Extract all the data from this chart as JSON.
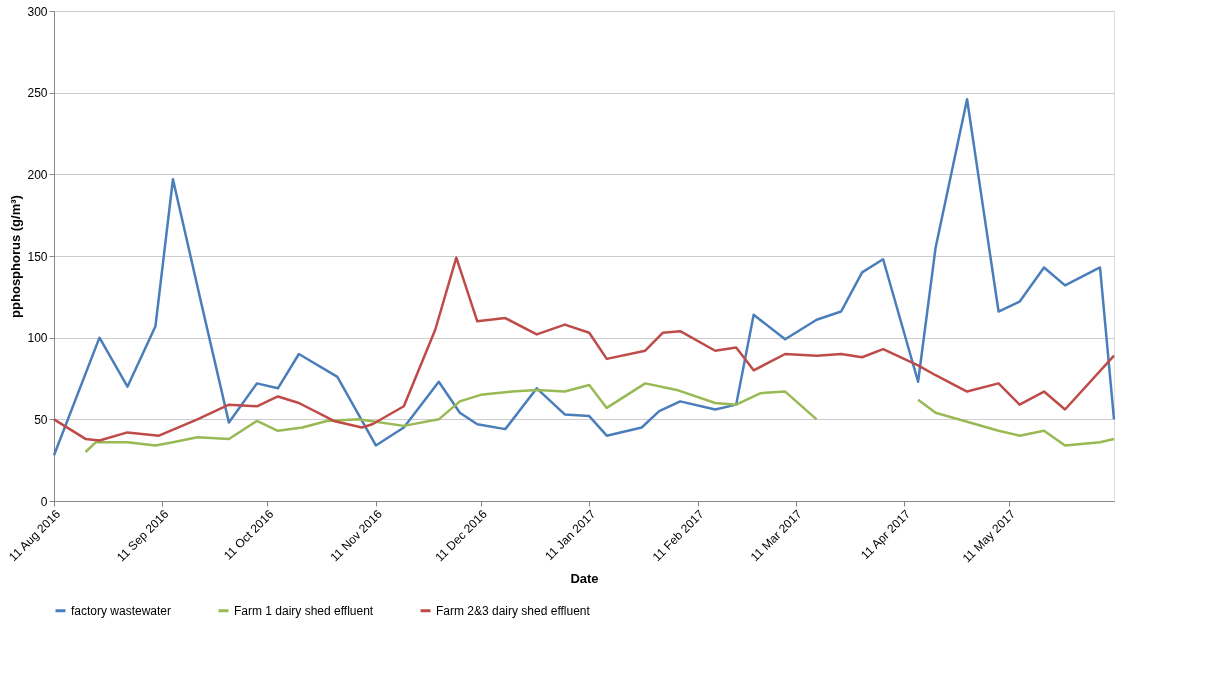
{
  "chart_data": {
    "type": "line",
    "xlabel": "Date",
    "ylabel": "pphosphorus (g/m³)",
    "xlim": [
      "2016-08-11",
      "2017-06-10"
    ],
    "xticks": [
      {
        "value": "2016-08-11",
        "label": "11 Aug 2016"
      },
      {
        "value": "2016-09-11",
        "label": "11 Sep 2016"
      },
      {
        "value": "2016-10-11",
        "label": "11 Oct 2016"
      },
      {
        "value": "2016-11-11",
        "label": "11 Nov 2016"
      },
      {
        "value": "2016-12-11",
        "label": "11 Dec 2016"
      },
      {
        "value": "2017-01-11",
        "label": "11 Jan 2017"
      },
      {
        "value": "2017-02-11",
        "label": "11 Feb 2017"
      },
      {
        "value": "2017-03-11",
        "label": "11 Mar 2017"
      },
      {
        "value": "2017-04-11",
        "label": "11 Apr 2017"
      },
      {
        "value": "2017-05-11",
        "label": "11 May 2017"
      }
    ],
    "ylim": [
      0,
      300
    ],
    "yticks": [
      0,
      50,
      100,
      150,
      200,
      250,
      300
    ],
    "grid": "y",
    "legend": "bottom",
    "marker": "none",
    "line_style": "solid",
    "series": [
      {
        "name": "factory wastewater",
        "color": "#4a7ebb",
        "x": [
          "2016-08-11",
          "2016-08-24",
          "2016-09-01",
          "2016-09-09",
          "2016-09-14",
          "2016-09-22",
          "2016-09-30",
          "2016-10-08",
          "2016-10-14",
          "2016-10-20",
          "2016-10-31",
          "2016-11-11",
          "2016-11-19",
          "2016-11-29",
          "2016-12-05",
          "2016-12-10",
          "2016-12-18",
          "2016-12-27",
          "2017-01-04",
          "2017-01-11",
          "2017-01-16",
          "2017-01-26",
          "2017-01-31",
          "2017-02-06",
          "2017-02-16",
          "2017-02-22",
          "2017-02-27",
          "2017-03-08",
          "2017-03-17",
          "2017-03-24",
          "2017-03-30",
          "2017-04-05",
          "2017-04-15",
          "2017-04-20",
          "2017-04-29",
          "2017-05-08",
          "2017-05-14",
          "2017-05-21",
          "2017-05-27",
          "2017-06-06",
          "2017-06-10"
        ],
        "values": [
          28,
          100,
          70,
          107,
          197,
          122,
          48,
          72,
          69,
          90,
          76,
          34,
          45,
          73,
          54,
          47,
          44,
          69,
          53,
          52,
          40,
          45,
          55,
          61,
          56,
          59,
          114,
          99,
          111,
          116,
          140,
          148,
          73,
          155,
          246,
          116,
          122,
          143,
          132,
          143,
          50
        ]
      },
      {
        "name": "Farm 1 dairy shed effluent",
        "color": "#98b954",
        "x": [
          "2016-08-20",
          "2016-08-23",
          "2016-09-01",
          "2016-09-09",
          "2016-09-14",
          "2016-09-21",
          "2016-09-30",
          "2016-10-08",
          "2016-10-14",
          "2016-10-21",
          "2016-10-28",
          "2016-11-06",
          "2016-11-19",
          "2016-11-29",
          "2016-12-05",
          "2016-12-11",
          "2016-12-20",
          "2016-12-27",
          "2017-01-04",
          "2017-01-11",
          "2017-01-16",
          "2017-01-27",
          "2017-02-05",
          "2017-02-16",
          "2017-02-22",
          "2017-03-01",
          "2017-03-08",
          "2017-03-17",
          "2017-04-01",
          "2017-04-15",
          "2017-04-20",
          "2017-05-08",
          "2017-05-14",
          "2017-05-21",
          "2017-05-27",
          "2017-06-06",
          "2017-06-10"
        ],
        "values": [
          30,
          36,
          36,
          34,
          36,
          39,
          38,
          49,
          43,
          45,
          49,
          50,
          46,
          50,
          61,
          65,
          67,
          68,
          67,
          71,
          57,
          72,
          68,
          60,
          59,
          66,
          67,
          50,
          null,
          62,
          54,
          43,
          40,
          43,
          34,
          36,
          38
        ]
      },
      {
        "name": "Farm 2&3 dairy shed effluent",
        "color": "#be4b48",
        "x": [
          "2016-08-11",
          "2016-08-20",
          "2016-08-24",
          "2016-09-01",
          "2016-09-10",
          "2016-09-21",
          "2016-09-30",
          "2016-10-08",
          "2016-10-14",
          "2016-10-20",
          "2016-10-30",
          "2016-11-07",
          "2016-11-10",
          "2016-11-19",
          "2016-11-28",
          "2016-12-04",
          "2016-12-10",
          "2016-12-18",
          "2016-12-27",
          "2017-01-04",
          "2017-01-11",
          "2017-01-16",
          "2017-01-27",
          "2017-02-01",
          "2017-02-06",
          "2017-02-16",
          "2017-02-22",
          "2017-02-27",
          "2017-03-08",
          "2017-03-17",
          "2017-03-24",
          "2017-03-30",
          "2017-04-05",
          "2017-04-15",
          "2017-04-20",
          "2017-04-29",
          "2017-05-08",
          "2017-05-14",
          "2017-05-21",
          "2017-05-27",
          "2017-06-10"
        ],
        "values": [
          50,
          38,
          37,
          42,
          40,
          50,
          59,
          58,
          64,
          60,
          49,
          45,
          47,
          58,
          105,
          149,
          110,
          112,
          102,
          108,
          103,
          87,
          92,
          103,
          104,
          92,
          94,
          80,
          90,
          89,
          90,
          88,
          93,
          83,
          77,
          67,
          72,
          59,
          67,
          56,
          89
        ]
      }
    ]
  }
}
